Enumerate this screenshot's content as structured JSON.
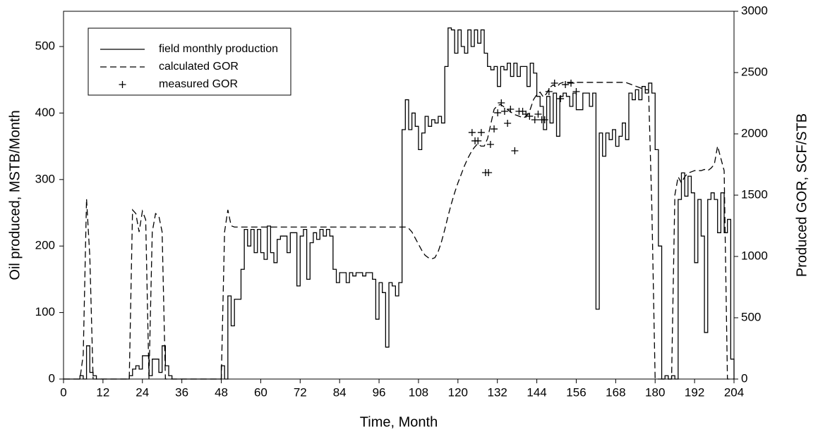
{
  "chart_data": {
    "type": "line",
    "xlabel": "Time,  Month",
    "ylabel": "Oil produced, MSTB/Month",
    "y2label": "Produced GOR, SCF/STB",
    "xlim": [
      0,
      204
    ],
    "xticks": [
      0,
      12,
      24,
      36,
      48,
      60,
      72,
      84,
      96,
      108,
      120,
      132,
      144,
      156,
      168,
      180,
      192,
      204
    ],
    "ylim": [
      0,
      553
    ],
    "yticks": [
      0,
      100,
      200,
      300,
      400,
      500
    ],
    "y2lim": [
      0,
      3000
    ],
    "y2ticks": [
      0,
      500,
      1000,
      1500,
      2000,
      2500,
      3000
    ],
    "legend": "upper left",
    "x": [
      0,
      1,
      2,
      3,
      4,
      5,
      6,
      7,
      8,
      9,
      10,
      11,
      12,
      13,
      14,
      15,
      16,
      17,
      18,
      19,
      20,
      21,
      22,
      23,
      24,
      25,
      26,
      27,
      28,
      29,
      30,
      31,
      32,
      33,
      34,
      35,
      36,
      37,
      38,
      39,
      40,
      41,
      42,
      43,
      44,
      45,
      46,
      47,
      48,
      49,
      50,
      51,
      52,
      53,
      54,
      55,
      56,
      57,
      58,
      59,
      60,
      61,
      62,
      63,
      64,
      65,
      66,
      67,
      68,
      69,
      70,
      71,
      72,
      73,
      74,
      75,
      76,
      77,
      78,
      79,
      80,
      81,
      82,
      83,
      84,
      85,
      86,
      87,
      88,
      89,
      90,
      91,
      92,
      93,
      94,
      95,
      96,
      97,
      98,
      99,
      100,
      101,
      102,
      103,
      104,
      105,
      106,
      107,
      108,
      109,
      110,
      111,
      112,
      113,
      114,
      115,
      116,
      117,
      118,
      119,
      120,
      121,
      122,
      123,
      124,
      125,
      126,
      127,
      128,
      129,
      130,
      131,
      132,
      133,
      134,
      135,
      136,
      137,
      138,
      139,
      140,
      141,
      142,
      143,
      144,
      145,
      146,
      147,
      148,
      149,
      150,
      151,
      152,
      153,
      154,
      155,
      156,
      157,
      158,
      159,
      160,
      161,
      162,
      163,
      164,
      165,
      166,
      167,
      168,
      169,
      170,
      171,
      172,
      173,
      174,
      175,
      176,
      177,
      178,
      179,
      180,
      181,
      182,
      183,
      184,
      185,
      186,
      187,
      188,
      189,
      190,
      191,
      192,
      193,
      194,
      195,
      196,
      197,
      198,
      199,
      200,
      201,
      202,
      203,
      204
    ],
    "series": [
      {
        "name": "field monthly production",
        "color": "#000000",
        "style": "solid",
        "drawstyle": "steps-post",
        "values": [
          0,
          0,
          0,
          0,
          0,
          5,
          0,
          50,
          10,
          5,
          0,
          0,
          0,
          0,
          0,
          0,
          0,
          0,
          0,
          0,
          5,
          15,
          20,
          15,
          35,
          35,
          5,
          30,
          30,
          10,
          50,
          20,
          5,
          0,
          0,
          0,
          0,
          0,
          0,
          0,
          0,
          0,
          0,
          0,
          0,
          0,
          0,
          0,
          20,
          0,
          125,
          80,
          120,
          120,
          165,
          225,
          200,
          225,
          190,
          225,
          190,
          180,
          230,
          190,
          175,
          210,
          215,
          215,
          190,
          220,
          220,
          140,
          215,
          225,
          150,
          205,
          220,
          210,
          225,
          215,
          225,
          215,
          165,
          145,
          160,
          160,
          145,
          160,
          155,
          160,
          160,
          155,
          160,
          160,
          150,
          90,
          145,
          130,
          48,
          145,
          140,
          125,
          145,
          375,
          420,
          375,
          400,
          380,
          345,
          370,
          395,
          380,
          390,
          385,
          395,
          385,
          470,
          528,
          525,
          490,
          525,
          500,
          490,
          525,
          500,
          525,
          505,
          525,
          490,
          470,
          465,
          470,
          440,
          470,
          465,
          475,
          455,
          475,
          455,
          470,
          470,
          440,
          475,
          460,
          425,
          410,
          375,
          425,
          385,
          430,
          365,
          425,
          430,
          425,
          410,
          430,
          405,
          405,
          430,
          430,
          410,
          430,
          105,
          370,
          335,
          370,
          360,
          375,
          350,
          365,
          385,
          360,
          430,
          420,
          435,
          420,
          440,
          430,
          445,
          430,
          345,
          200,
          0,
          5,
          0,
          5,
          0,
          270,
          310,
          275,
          305,
          280,
          175,
          270,
          215,
          70,
          270,
          280,
          270,
          220,
          280,
          220,
          240,
          30,
          0
        ]
      },
      {
        "name": "calculated GOR",
        "color": "#000000",
        "style": "dashed",
        "axis": "y2",
        "values": [
          0,
          0,
          0,
          0,
          0,
          0,
          200,
          1470,
          1000,
          0,
          0,
          0,
          0,
          0,
          0,
          0,
          0,
          0,
          0,
          0,
          0,
          1380,
          1350,
          1200,
          1370,
          1300,
          0,
          1200,
          1350,
          1330,
          1200,
          0,
          0,
          0,
          0,
          0,
          0,
          0,
          0,
          0,
          0,
          0,
          0,
          0,
          0,
          0,
          0,
          0,
          0,
          1200,
          1380,
          1250,
          1240,
          1240,
          1240,
          1240,
          1240,
          1240,
          1240,
          1240,
          1240,
          1240,
          1240,
          1240,
          1240,
          1240,
          1240,
          1240,
          1240,
          1240,
          1240,
          1240,
          1240,
          1240,
          1240,
          1240,
          1240,
          1240,
          1240,
          1240,
          1240,
          1240,
          1240,
          1240,
          1240,
          1240,
          1240,
          1240,
          1240,
          1240,
          1240,
          1240,
          1240,
          1240,
          1240,
          1240,
          1240,
          1240,
          1240,
          1240,
          1240,
          1240,
          1240,
          1240,
          1240,
          1230,
          1200,
          1150,
          1100,
          1050,
          1010,
          990,
          980,
          990,
          1040,
          1120,
          1220,
          1330,
          1430,
          1520,
          1600,
          1670,
          1740,
          1800,
          1850,
          1890,
          1920,
          1900,
          1900,
          1960,
          2080,
          2200,
          2230,
          2240,
          2220,
          2200,
          2180,
          2160,
          2150,
          2140,
          2130,
          2150,
          2200,
          2280,
          2320,
          2340,
          2300,
          2330,
          2380,
          2400,
          2380,
          2410,
          2420,
          2420,
          2420,
          2420,
          2420,
          2420,
          2420,
          2420,
          2420,
          2420,
          2420,
          2420,
          2420,
          2420,
          2420,
          2420,
          2420,
          2420,
          2420,
          2420,
          2410,
          2400,
          2390,
          2380,
          2370,
          2360,
          2360,
          1400,
          0,
          0,
          0,
          0,
          0,
          0,
          1500,
          1650,
          1600,
          1650,
          1680,
          1690,
          1700,
          1700,
          1700,
          1710,
          1700,
          1720,
          1750,
          1900,
          1800,
          1700,
          0,
          0,
          0
        ]
      },
      {
        "name": "measured GOR",
        "color": "#000000",
        "style": "none",
        "marker": "+",
        "axis": "y2",
        "x": [
          124.3,
          125.2,
          126.1,
          127.1,
          128.4,
          129.3,
          129.9,
          131,
          132.1,
          133.2,
          134.2,
          135.1,
          136,
          137.3,
          138.6,
          139.7,
          140.7,
          141.8,
          143.4,
          144.4,
          145.5,
          146.4,
          147.7,
          149.4,
          151.2,
          152.7,
          154.4,
          156
        ],
        "values": [
          2011,
          1943,
          1943,
          2011,
          1684,
          1684,
          1914,
          2040,
          2172,
          2253,
          2184,
          2086,
          2201,
          1862,
          2184,
          2184,
          2161,
          2144,
          2115,
          2161,
          2115,
          2115,
          2345,
          2414,
          2287,
          2402,
          2414,
          2345
        ]
      }
    ]
  }
}
